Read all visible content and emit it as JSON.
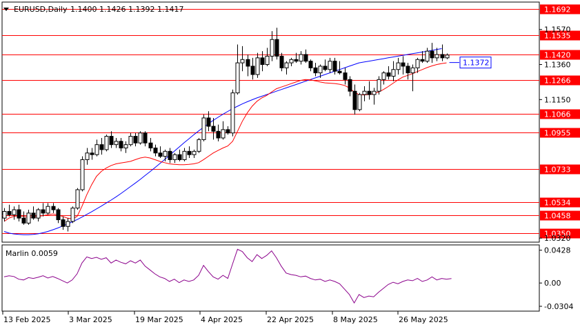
{
  "header": {
    "symbol": "EURUSD,Daily",
    "ohlc": "1.1400 1.1426 1.1392 1.1417"
  },
  "chart_data": [
    {
      "type": "candlestick",
      "symbol": "EURUSD",
      "timeframe": "Daily",
      "ylim": [
        1.03,
        1.173
      ],
      "y_ticks": [
        1.032,
        1.115,
        1.136,
        1.157
      ],
      "x_tick_labels": [
        "13 Feb 2025",
        "3 Mar 2025",
        "19 Mar 2025",
        "4 Apr 2025",
        "22 Apr 2025",
        "8 May 2025",
        "26 May 2025"
      ],
      "levels": [
        {
          "value": 1.1692,
          "label": "1.1692",
          "color": "#ff0000"
        },
        {
          "value": 1.1535,
          "label": "1.1535",
          "color": "#ff0000"
        },
        {
          "value": 1.142,
          "label": "1.1420",
          "color": "#ff0000"
        },
        {
          "value": 1.1266,
          "label": "1.1266",
          "color": "#ff0000"
        },
        {
          "value": 1.1066,
          "label": "1.1066",
          "color": "#ff0000"
        },
        {
          "value": 1.0955,
          "label": "1.0955",
          "color": "#ff0000"
        },
        {
          "value": 1.0733,
          "label": "1.0733",
          "color": "#ff0000"
        },
        {
          "value": 1.0534,
          "label": "1.0534",
          "color": "#ff0000"
        },
        {
          "value": 1.0458,
          "label": "1.0458",
          "color": "#ff0000"
        },
        {
          "value": 1.035,
          "label": "1.0350",
          "color": "#ff0000"
        }
      ],
      "price_marker": {
        "value": 1.1372,
        "label": "1.1372",
        "color": "#0000ff"
      },
      "candles": [
        [
          1.044,
          1.05,
          1.042,
          1.048
        ],
        [
          1.048,
          1.052,
          1.045,
          1.046
        ],
        [
          1.046,
          1.051,
          1.043,
          1.049
        ],
        [
          1.049,
          1.052,
          1.042,
          1.044
        ],
        [
          1.044,
          1.048,
          1.04,
          1.041
        ],
        [
          1.041,
          1.049,
          1.04,
          1.047
        ],
        [
          1.047,
          1.051,
          1.043,
          1.044
        ],
        [
          1.044,
          1.05,
          1.042,
          1.049
        ],
        [
          1.049,
          1.053,
          1.045,
          1.047
        ],
        [
          1.047,
          1.053,
          1.046,
          1.051
        ],
        [
          1.051,
          1.053,
          1.047,
          1.049
        ],
        [
          1.049,
          1.05,
          1.041,
          1.043
        ],
        [
          1.043,
          1.045,
          1.037,
          1.039
        ],
        [
          1.039,
          1.044,
          1.036,
          1.042
        ],
        [
          1.042,
          1.051,
          1.041,
          1.05
        ],
        [
          1.05,
          1.062,
          1.049,
          1.061
        ],
        [
          1.061,
          1.081,
          1.06,
          1.079
        ],
        [
          1.079,
          1.086,
          1.076,
          1.083
        ],
        [
          1.083,
          1.086,
          1.079,
          1.082
        ],
        [
          1.082,
          1.091,
          1.081,
          1.088
        ],
        [
          1.088,
          1.092,
          1.082,
          1.085
        ],
        [
          1.085,
          1.094,
          1.084,
          1.093
        ],
        [
          1.093,
          1.096,
          1.086,
          1.088
        ],
        [
          1.088,
          1.092,
          1.086,
          1.09
        ],
        [
          1.09,
          1.092,
          1.084,
          1.086
        ],
        [
          1.086,
          1.09,
          1.083,
          1.088
        ],
        [
          1.088,
          1.095,
          1.087,
          1.093
        ],
        [
          1.093,
          1.095,
          1.087,
          1.089
        ],
        [
          1.089,
          1.096,
          1.088,
          1.095
        ],
        [
          1.095,
          1.096,
          1.087,
          1.089
        ],
        [
          1.089,
          1.092,
          1.084,
          1.086
        ],
        [
          1.086,
          1.088,
          1.081,
          1.083
        ],
        [
          1.083,
          1.087,
          1.08,
          1.081
        ],
        [
          1.081,
          1.085,
          1.078,
          1.084
        ],
        [
          1.084,
          1.086,
          1.077,
          1.079
        ],
        [
          1.079,
          1.083,
          1.077,
          1.082
        ],
        [
          1.082,
          1.085,
          1.078,
          1.079
        ],
        [
          1.079,
          1.086,
          1.078,
          1.084
        ],
        [
          1.084,
          1.087,
          1.08,
          1.082
        ],
        [
          1.082,
          1.085,
          1.08,
          1.084
        ],
        [
          1.084,
          1.092,
          1.083,
          1.091
        ],
        [
          1.091,
          1.106,
          1.09,
          1.104
        ],
        [
          1.104,
          1.108,
          1.096,
          1.099
        ],
        [
          1.099,
          1.104,
          1.091,
          1.096
        ],
        [
          1.096,
          1.1,
          1.09,
          1.092
        ],
        [
          1.092,
          1.102,
          1.091,
          1.097
        ],
        [
          1.097,
          1.099,
          1.094,
          1.095
        ],
        [
          1.095,
          1.121,
          1.093,
          1.119
        ],
        [
          1.119,
          1.148,
          1.118,
          1.137
        ],
        [
          1.137,
          1.147,
          1.132,
          1.139
        ],
        [
          1.139,
          1.142,
          1.129,
          1.135
        ],
        [
          1.135,
          1.14,
          1.127,
          1.13
        ],
        [
          1.13,
          1.143,
          1.128,
          1.14
        ],
        [
          1.14,
          1.144,
          1.132,
          1.136
        ],
        [
          1.136,
          1.146,
          1.135,
          1.141
        ],
        [
          1.141,
          1.156,
          1.138,
          1.151
        ],
        [
          1.151,
          1.158,
          1.139,
          1.141
        ],
        [
          1.141,
          1.143,
          1.132,
          1.134
        ],
        [
          1.134,
          1.138,
          1.13,
          1.137
        ],
        [
          1.137,
          1.14,
          1.135,
          1.139
        ],
        [
          1.139,
          1.143,
          1.137,
          1.138
        ],
        [
          1.138,
          1.144,
          1.136,
          1.142
        ],
        [
          1.142,
          1.145,
          1.137,
          1.138
        ],
        [
          1.138,
          1.139,
          1.132,
          1.134
        ],
        [
          1.134,
          1.137,
          1.129,
          1.131
        ],
        [
          1.131,
          1.136,
          1.128,
          1.135
        ],
        [
          1.135,
          1.139,
          1.132,
          1.133
        ],
        [
          1.133,
          1.14,
          1.131,
          1.138
        ],
        [
          1.138,
          1.14,
          1.13,
          1.132
        ],
        [
          1.132,
          1.138,
          1.13,
          1.131
        ],
        [
          1.131,
          1.134,
          1.124,
          1.127
        ],
        [
          1.127,
          1.129,
          1.117,
          1.12
        ],
        [
          1.12,
          1.124,
          1.106,
          1.109
        ],
        [
          1.109,
          1.119,
          1.108,
          1.118
        ],
        [
          1.118,
          1.123,
          1.114,
          1.12
        ],
        [
          1.12,
          1.126,
          1.115,
          1.118
        ],
        [
          1.118,
          1.122,
          1.112,
          1.12
        ],
        [
          1.12,
          1.129,
          1.118,
          1.127
        ],
        [
          1.127,
          1.132,
          1.124,
          1.131
        ],
        [
          1.131,
          1.135,
          1.127,
          1.129
        ],
        [
          1.129,
          1.138,
          1.126,
          1.133
        ],
        [
          1.133,
          1.14,
          1.13,
          1.137
        ],
        [
          1.137,
          1.141,
          1.13,
          1.135
        ],
        [
          1.135,
          1.137,
          1.127,
          1.131
        ],
        [
          1.131,
          1.136,
          1.12,
          1.134
        ],
        [
          1.134,
          1.14,
          1.131,
          1.139
        ],
        [
          1.139,
          1.144,
          1.137,
          1.138
        ],
        [
          1.138,
          1.146,
          1.137,
          1.144
        ],
        [
          1.144,
          1.149,
          1.137,
          1.14
        ],
        [
          1.14,
          1.146,
          1.138,
          1.142
        ],
        [
          1.142,
          1.148,
          1.138,
          1.14
        ],
        [
          1.14,
          1.1426,
          1.1392,
          1.1417
        ]
      ],
      "ma_slow": [
        1.036,
        1.035,
        1.0345,
        1.0342,
        1.034,
        1.034,
        1.0342,
        1.0346,
        1.0352,
        1.036,
        1.037,
        1.038,
        1.0392,
        1.0404,
        1.0417,
        1.0431,
        1.0446,
        1.0462,
        1.0478,
        1.0495,
        1.0512,
        1.053,
        1.0548,
        1.0567,
        1.0587,
        1.0608,
        1.0629,
        1.065,
        1.0672,
        1.0695,
        1.0718,
        1.0742,
        1.0766,
        1.0791,
        1.0816,
        1.0841,
        1.0866,
        1.0891,
        1.0915,
        1.0939,
        1.0962,
        1.0984,
        1.1005,
        1.1025,
        1.1044,
        1.1062,
        1.1079,
        1.1095,
        1.111,
        1.1124,
        1.1137,
        1.1149,
        1.116,
        1.117,
        1.118,
        1.119,
        1.12,
        1.121,
        1.122,
        1.123,
        1.124,
        1.125,
        1.126,
        1.127,
        1.128,
        1.129,
        1.13,
        1.131,
        1.132,
        1.133,
        1.134,
        1.135,
        1.136,
        1.137,
        1.1375,
        1.138,
        1.1385,
        1.139,
        1.1395,
        1.14,
        1.1405,
        1.141,
        1.1415,
        1.142,
        1.1425,
        1.143,
        1.1435,
        1.144,
        1.1445,
        1.145,
        1.1455,
        1.1372
      ],
      "ma_fast": [
        1.042,
        1.044,
        1.045,
        1.0455,
        1.045,
        1.0445,
        1.0445,
        1.045,
        1.0455,
        1.046,
        1.0465,
        1.046,
        1.045,
        1.044,
        1.0435,
        1.045,
        1.051,
        1.058,
        1.064,
        1.069,
        1.072,
        1.074,
        1.0755,
        1.0765,
        1.077,
        1.0775,
        1.078,
        1.079,
        1.08,
        1.0805,
        1.08,
        1.079,
        1.078,
        1.0772,
        1.0765,
        1.0762,
        1.076,
        1.076,
        1.0762,
        1.0765,
        1.0772,
        1.079,
        1.081,
        1.083,
        1.0845,
        1.086,
        1.0872,
        1.09,
        1.096,
        1.102,
        1.107,
        1.111,
        1.114,
        1.116,
        1.1175,
        1.1195,
        1.1215,
        1.1225,
        1.1235,
        1.1245,
        1.1255,
        1.1265,
        1.127,
        1.1268,
        1.1262,
        1.1255,
        1.125,
        1.1248,
        1.1246,
        1.1242,
        1.1235,
        1.122,
        1.1195,
        1.118,
        1.1178,
        1.118,
        1.1185,
        1.1195,
        1.121,
        1.1228,
        1.1248,
        1.1268,
        1.1285,
        1.1295,
        1.1305,
        1.1318,
        1.133,
        1.1342,
        1.1352,
        1.136,
        1.1366,
        1.137
      ]
    },
    {
      "type": "line",
      "title": "Marlin 0.0059",
      "ylim": [
        -0.034,
        0.047
      ],
      "y_ticks": [
        0.0428,
        0.0,
        -0.0304
      ],
      "y_tick_labels": [
        "0.0428",
        "0.00",
        "-0.0304"
      ],
      "series": [
        {
          "color": "#8b008b",
          "values": [
            0.008,
            0.0095,
            0.0085,
            0.005,
            0.004,
            0.007,
            0.006,
            0.0075,
            0.0095,
            0.0065,
            0.0085,
            0.006,
            0.003,
            0.0,
            0.004,
            0.012,
            0.026,
            0.034,
            0.032,
            0.0335,
            0.031,
            0.033,
            0.026,
            0.03,
            0.027,
            0.025,
            0.029,
            0.026,
            0.03,
            0.022,
            0.017,
            0.012,
            0.008,
            0.006,
            0.002,
            0.005,
            0.0005,
            0.004,
            0.002,
            0.004,
            0.01,
            0.023,
            0.015,
            0.008,
            0.005,
            0.01,
            0.006,
            0.025,
            0.044,
            0.041,
            0.033,
            0.028,
            0.037,
            0.032,
            0.036,
            0.042,
            0.033,
            0.022,
            0.013,
            0.011,
            0.01,
            0.008,
            0.009,
            0.006,
            0.004,
            0.005,
            0.002,
            0.004,
            0.002,
            -0.001,
            -0.008,
            -0.015,
            -0.026,
            -0.015,
            -0.019,
            -0.017,
            -0.018,
            -0.012,
            -0.007,
            -0.002,
            0.001,
            -0.001,
            0.002,
            0.004,
            0.003,
            0.006,
            0.002,
            0.004,
            0.008,
            0.004,
            0.006,
            0.005,
            0.0059
          ]
        }
      ]
    }
  ]
}
